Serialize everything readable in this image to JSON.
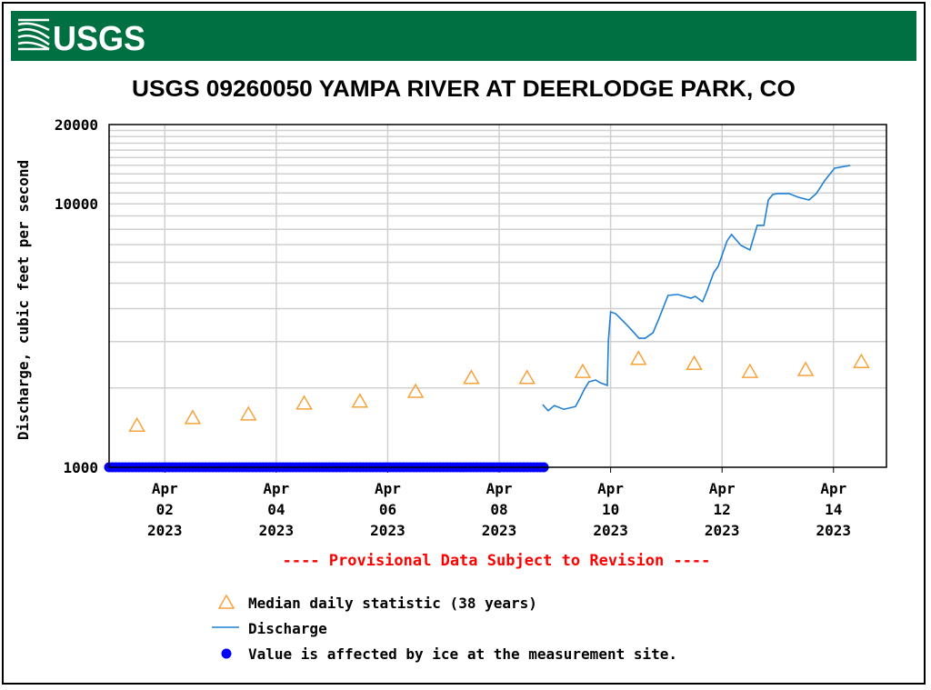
{
  "header": {
    "logo_text": "USGS",
    "brand_color": "#006f41"
  },
  "chart_data": {
    "type": "line",
    "title": "USGS 09260050 YAMPA RIVER AT DEERLODGE PARK, CO",
    "ylabel": "Discharge, cubic feet per second",
    "xlabel": "",
    "yscale": "log",
    "ylim": [
      1000,
      20000
    ],
    "y_ticks": [
      "1000",
      "10000",
      "20000"
    ],
    "xlim_days_since_apr01": [
      0,
      13.95
    ],
    "x_ticks": [
      {
        "day": 1,
        "month": "Apr",
        "date": "02",
        "year": "2023"
      },
      {
        "day": 3,
        "month": "Apr",
        "date": "04",
        "year": "2023"
      },
      {
        "day": 5,
        "month": "Apr",
        "date": "06",
        "year": "2023"
      },
      {
        "day": 7,
        "month": "Apr",
        "date": "08",
        "year": "2023"
      },
      {
        "day": 9,
        "month": "Apr",
        "date": "10",
        "year": "2023"
      },
      {
        "day": 11,
        "month": "Apr",
        "date": "12",
        "year": "2023"
      },
      {
        "day": 13,
        "month": "Apr",
        "date": "14",
        "year": "2023"
      }
    ],
    "grid": true,
    "series": [
      {
        "name": "Median daily statistic (38 years)",
        "kind": "triangle-marker",
        "color": "#f7a23b",
        "x": [
          0.5,
          1.5,
          2.5,
          3.5,
          4.5,
          5.5,
          6.5,
          7.5,
          8.5,
          9.5,
          10.5,
          11.5,
          12.5,
          13.5
        ],
        "y": [
          1450,
          1550,
          1600,
          1760,
          1790,
          1950,
          2200,
          2200,
          2320,
          2600,
          2490,
          2320,
          2360,
          2530
        ]
      },
      {
        "name": "Discharge",
        "kind": "line",
        "color": "#1f7fd4",
        "x": [
          7.78,
          7.88,
          7.99,
          8.16,
          8.37,
          8.45,
          8.53,
          8.61,
          8.73,
          8.81,
          8.94,
          8.96,
          9.0,
          9.09,
          9.3,
          9.51,
          9.62,
          9.76,
          9.87,
          10.03,
          10.2,
          10.44,
          10.52,
          10.65,
          10.73,
          10.85,
          10.93,
          11.09,
          11.17,
          11.34,
          11.5,
          11.63,
          11.75,
          11.83,
          11.91,
          11.99,
          12.2,
          12.37,
          12.56,
          12.69,
          12.85,
          13.02,
          13.3
        ],
        "y": [
          1730,
          1640,
          1715,
          1660,
          1700,
          1830,
          1980,
          2110,
          2145,
          2095,
          2045,
          3020,
          3890,
          3830,
          3455,
          3090,
          3090,
          3240,
          3680,
          4490,
          4530,
          4385,
          4455,
          4250,
          4670,
          5480,
          5790,
          7235,
          7650,
          6950,
          6680,
          8280,
          8280,
          10340,
          10850,
          10940,
          10940,
          10590,
          10340,
          10940,
          12320,
          13665,
          13990
        ]
      },
      {
        "name": "Value is affected by ice at the measurement site.",
        "kind": "dot-marker",
        "color": "#0000ff",
        "x_range": [
          0,
          7.8
        ],
        "y": 1000
      }
    ],
    "annotation": "---- Provisional Data Subject to Revision ----",
    "legend_placement": "bottom"
  }
}
